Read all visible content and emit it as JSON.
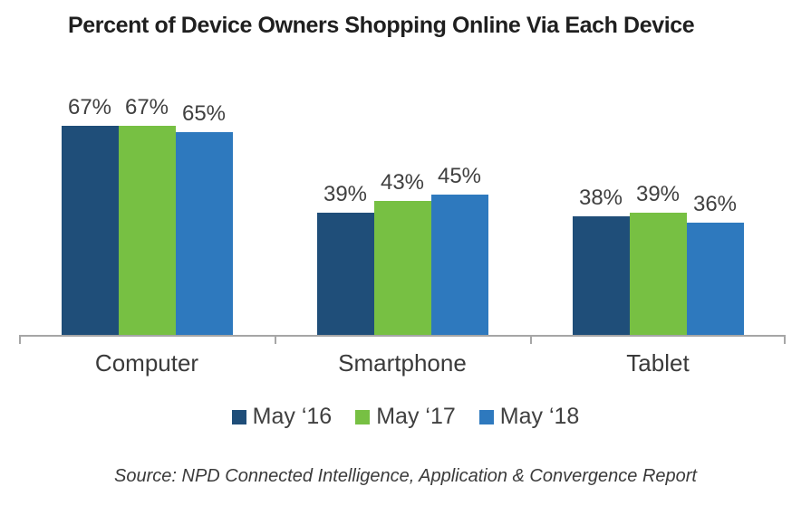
{
  "title": "Percent of Device Owners Shopping Online Via Each Device",
  "source": "Source: NPD Connected Intelligence, Application & Convergence Report",
  "chart_data": {
    "type": "bar",
    "title": "Percent of Device Owners Shopping Online Via Each Device",
    "categories": [
      "Computer",
      "Smartphone",
      "Tablet"
    ],
    "series": [
      {
        "name": "May ‘16",
        "color": "#1F4E79",
        "values": [
          67,
          39,
          38
        ]
      },
      {
        "name": "May ‘17",
        "color": "#77C043",
        "values": [
          67,
          43,
          39
        ]
      },
      {
        "name": "May ‘18",
        "color": "#2E79BE",
        "values": [
          65,
          45,
          36
        ]
      }
    ],
    "value_format": "{v}%",
    "xlabel": "",
    "ylabel": "",
    "ylim": [
      0,
      84
    ],
    "y_axis_visible": false,
    "grid": false,
    "legend_position": "bottom",
    "axis_color": "#A6A6A6",
    "label_color": "#404040",
    "source_note": "Source: NPD Connected Intelligence, Application & Convergence Report"
  }
}
